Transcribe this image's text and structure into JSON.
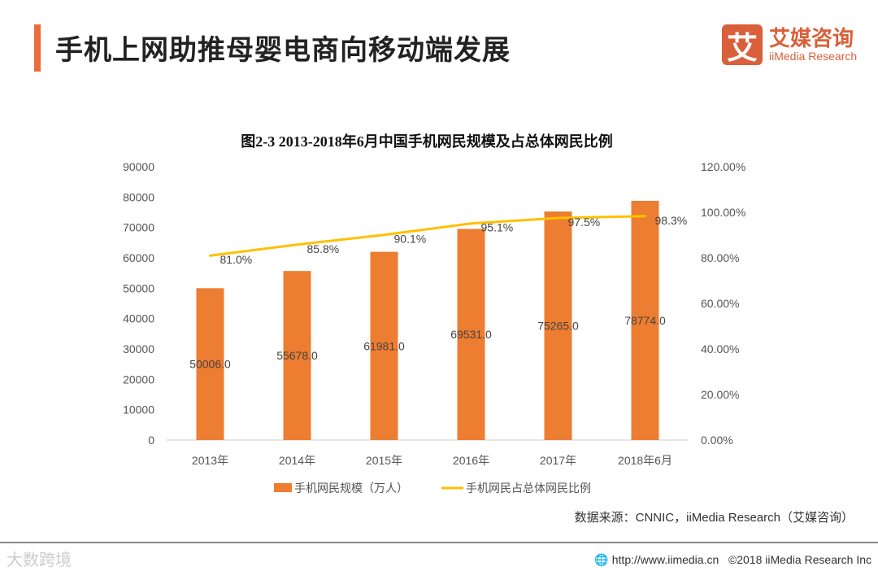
{
  "header": {
    "title": "手机上网助推母婴电商向移动端发展",
    "logo_mark": "艾",
    "logo_cn": "艾媒咨询",
    "logo_en": "iiMedia Research"
  },
  "chart_data": {
    "type": "bar+line",
    "title": "图2-3 2013-2018年6月中国手机网民规模及占总体网民比例",
    "categories": [
      "2013年",
      "2014年",
      "2015年",
      "2016年",
      "2017年",
      "2018年6月"
    ],
    "series": [
      {
        "name": "手机网民规模（万人）",
        "type": "bar",
        "axis": "left",
        "values": [
          50006.0,
          55678.0,
          61981.0,
          69531.0,
          75265.0,
          78774.0
        ],
        "labels": [
          "50006.0",
          "55678.0",
          "61981.0",
          "69531.0",
          "75265.0",
          "78774.0"
        ],
        "color": "#ED7D31"
      },
      {
        "name": "手机网民占总体网民比例",
        "type": "line",
        "axis": "right",
        "values": [
          81.0,
          85.8,
          90.1,
          95.1,
          97.5,
          98.3
        ],
        "labels": [
          "81.0%",
          "85.8%",
          "90.1%",
          "95.1%",
          "97.5%",
          "98.3%"
        ],
        "color": "#FFC000"
      }
    ],
    "left_axis": {
      "ylim": [
        0,
        90000
      ],
      "ticks": [
        "0",
        "10000",
        "20000",
        "30000",
        "40000",
        "50000",
        "60000",
        "70000",
        "80000",
        "90000"
      ]
    },
    "right_axis": {
      "ylim": [
        0,
        120
      ],
      "ticks": [
        "0.00%",
        "20.00%",
        "40.00%",
        "60.00%",
        "80.00%",
        "100.00%",
        "120.00%"
      ]
    },
    "legend": "bottom",
    "grid": false
  },
  "source": "数据来源：CNNIC，iiMedia Research（艾媒咨询）",
  "footer": {
    "watermark": "大数跨境",
    "url": "http://www.iimedia.cn",
    "copyright": "©2018  iiMedia Research  Inc"
  }
}
